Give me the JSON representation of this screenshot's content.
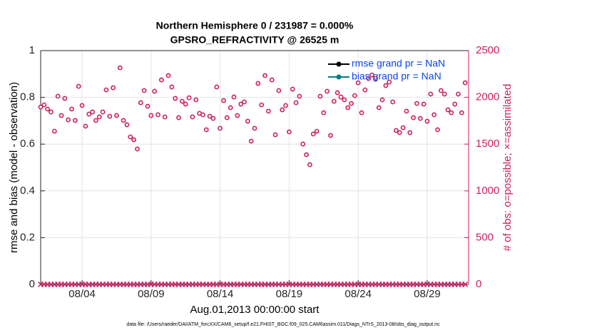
{
  "chart_data": {
    "type": "scatter",
    "title": "Northern Hemisphere 0 / 231987 = 0.000%",
    "subtitle": "GPSRO_REFRACTIVITY @ 26525 m",
    "xlabel": "Aug.01,2013 00:00:00 start",
    "ylabel": "rmse and bias (model - observation)",
    "y2label": "# of obs: o=possible; ×=assimilated",
    "footnote": "data file: /Users/raeder/DAI/ATM_forcXX/CAM6_setup/f.e21.FHIST_BGC.f09_025.CAM6assim.011/Diags_NTrS_2013-08/obs_diag_output.nc",
    "xlim": [
      1,
      32
    ],
    "xticks": [
      {
        "value": 4,
        "label": "08/04"
      },
      {
        "value": 9,
        "label": "08/09"
      },
      {
        "value": 14,
        "label": "08/14"
      },
      {
        "value": 19,
        "label": "08/19"
      },
      {
        "value": 24,
        "label": "08/24"
      },
      {
        "value": 29,
        "label": "08/29"
      }
    ],
    "ylim": [
      0,
      1
    ],
    "yticks": [
      0,
      0.2,
      0.4,
      0.6,
      0.8,
      1
    ],
    "y2lim": [
      0,
      2500
    ],
    "y2ticks": [
      0,
      500,
      1000,
      1500,
      2000,
      2500
    ],
    "y2color": "#cc1f5f",
    "grid": true,
    "legend_text_color": "#0a47e0",
    "x": [
      1,
      1.25,
      1.5,
      1.75,
      2,
      2.25,
      2.5,
      2.75,
      3,
      3.25,
      3.5,
      3.75,
      4,
      4.25,
      4.5,
      4.75,
      5,
      5.25,
      5.5,
      5.75,
      6,
      6.25,
      6.5,
      6.75,
      7,
      7.25,
      7.5,
      7.75,
      8,
      8.25,
      8.5,
      8.75,
      9,
      9.25,
      9.5,
      9.75,
      10,
      10.25,
      10.5,
      10.75,
      11,
      11.25,
      11.5,
      11.75,
      12,
      12.25,
      12.5,
      12.75,
      13,
      13.25,
      13.5,
      13.75,
      14,
      14.25,
      14.5,
      14.75,
      15,
      15.25,
      15.5,
      15.75,
      16,
      16.25,
      16.5,
      16.75,
      17,
      17.25,
      17.5,
      17.75,
      18,
      18.25,
      18.5,
      18.75,
      19,
      19.25,
      19.5,
      19.75,
      20,
      20.25,
      20.5,
      20.75,
      21,
      21.25,
      21.5,
      21.75,
      22,
      22.25,
      22.5,
      22.75,
      23,
      23.25,
      23.5,
      23.75,
      24,
      24.25,
      24.5,
      24.75,
      25,
      25.25,
      25.5,
      25.75,
      26,
      26.25,
      26.5,
      26.75,
      27,
      27.25,
      27.5,
      27.75,
      28,
      28.25,
      28.5,
      28.75,
      29,
      29.25,
      29.5,
      29.75,
      30,
      30.25,
      30.5,
      30.75,
      31,
      31.25,
      31.5,
      31.75
    ],
    "series": [
      {
        "name": "rmse grand pr = NaN",
        "color": "#000000",
        "marker": "o"
      },
      {
        "name": "bias grand pr = NaN",
        "color": "#00807f",
        "marker": "o"
      },
      {
        "color": "#cc1f5f",
        "marker": "o",
        "axis": "y2",
        "values": [
          1897,
          1920,
          1875,
          1844,
          1638,
          2012,
          1806,
          1989,
          1760,
          1875,
          1753,
          2118,
          1913,
          1692,
          1821,
          1844,
          1753,
          1791,
          1844,
          2080,
          1798,
          2103,
          1806,
          2316,
          1753,
          1707,
          1577,
          1547,
          1448,
          1943,
          2073,
          1905,
          1806,
          2065,
          1814,
          2187,
          1791,
          2233,
          2111,
          1989,
          1783,
          1958,
          1928,
          1996,
          1791,
          1974,
          1829,
          1814,
          1654,
          1798,
          1775,
          2111,
          1669,
          1966,
          1783,
          1890,
          2004,
          1806,
          1928,
          1951,
          1745,
          1532,
          1669,
          2149,
          1920,
          2233,
          1852,
          2187,
          1600,
          2073,
          1867,
          1913,
          1631,
          2088,
          1943,
          2012,
          1501,
          1387,
          1280,
          1608,
          1638,
          2012,
          1836,
          2065,
          1593,
          1958,
          2050,
          2004,
          1974,
          1890,
          1935,
          2019,
          2156,
          1836,
          2080,
          2202,
          2240,
          2202,
          1890,
          1974,
          2126,
          2164,
          1951,
          1646,
          1623,
          1676,
          1852,
          1623,
          1783,
          1935,
          1775,
          1928,
          1745,
          2035,
          1814,
          1654,
          2073,
          2035,
          1867,
          1836,
          1928,
          2035,
          1836,
          2156
        ]
      },
      {
        "color": "#cc1f5f",
        "marker": "x",
        "axis": "y2",
        "values": [
          0,
          0,
          0,
          0,
          0,
          0,
          0,
          0,
          0,
          0,
          0,
          0,
          0,
          0,
          0,
          0,
          0,
          0,
          0,
          0,
          0,
          0,
          0,
          0,
          0,
          0,
          0,
          0,
          0,
          0,
          0,
          0,
          0,
          0,
          0,
          0,
          0,
          0,
          0,
          0,
          0,
          0,
          0,
          0,
          0,
          0,
          0,
          0,
          0,
          0,
          0,
          0,
          0,
          0,
          0,
          0,
          0,
          0,
          0,
          0,
          0,
          0,
          0,
          0,
          0,
          0,
          0,
          0,
          0,
          0,
          0,
          0,
          0,
          0,
          0,
          0,
          0,
          0,
          0,
          0,
          0,
          0,
          0,
          0,
          0,
          0,
          0,
          0,
          0,
          0,
          0,
          0,
          0,
          0,
          0,
          0,
          0,
          0,
          0,
          0,
          0,
          0,
          0,
          0,
          0,
          0,
          0,
          0,
          0,
          0,
          0,
          0,
          0,
          0,
          0,
          0,
          0,
          0,
          0,
          0,
          0,
          0,
          0,
          0
        ]
      }
    ]
  }
}
